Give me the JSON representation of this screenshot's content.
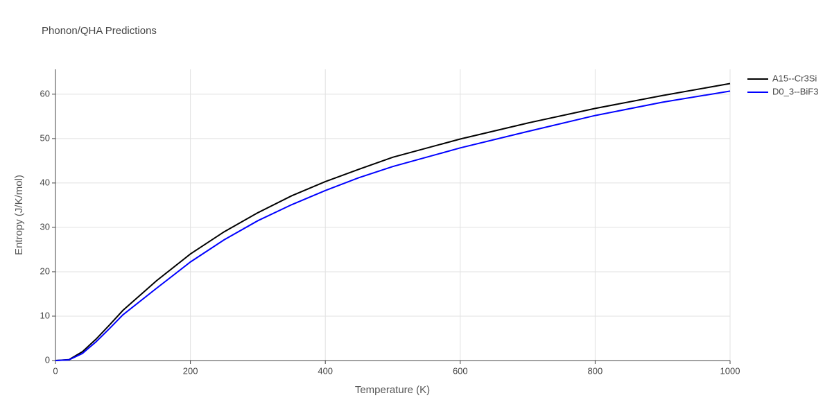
{
  "chart_data": {
    "type": "line",
    "title": "Phonon/QHA Predictions",
    "x_label": "Temperature (K)",
    "y_label": "Entropy (J/K/mol)",
    "x": [
      0,
      20,
      40,
      60,
      80,
      100,
      150,
      200,
      250,
      300,
      350,
      400,
      450,
      500,
      600,
      700,
      800,
      900,
      1000
    ],
    "series": [
      {
        "name": "A15--Cr3Si",
        "color": "#000000",
        "values": [
          0,
          0.2,
          2,
          4.8,
          8,
          11.3,
          18,
          24,
          29,
          33.3,
          37.1,
          40.3,
          43.1,
          45.8,
          49.9,
          53.5,
          56.8,
          59.7,
          62.4
        ]
      },
      {
        "name": "D0_3--BiF3",
        "color": "#0000ff",
        "values": [
          0,
          0.15,
          1.6,
          4.2,
          7.2,
          10.3,
          16.3,
          22.2,
          27.2,
          31.5,
          35.1,
          38.3,
          41.2,
          43.7,
          47.9,
          51.6,
          55.2,
          58.2,
          60.7
        ]
      }
    ],
    "xlim": [
      0,
      1000
    ],
    "ylim": [
      0,
      65.6
    ],
    "xticks": [
      0,
      200,
      400,
      600,
      800,
      1000
    ],
    "yticks": [
      0,
      10,
      20,
      30,
      40,
      50,
      60
    ],
    "grid": true,
    "legend": "top-right"
  }
}
